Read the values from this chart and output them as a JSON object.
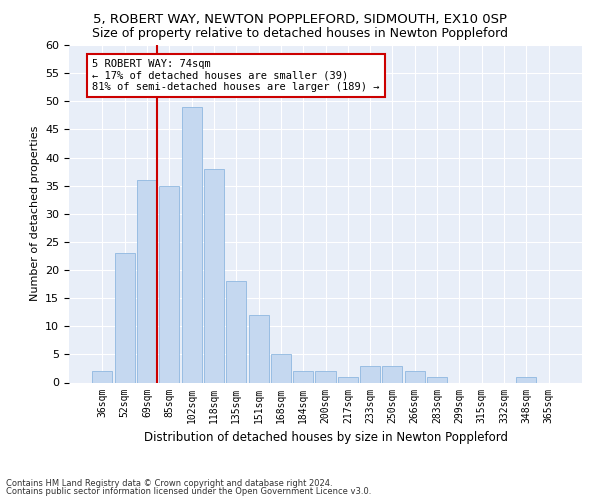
{
  "title1": "5, ROBERT WAY, NEWTON POPPLEFORD, SIDMOUTH, EX10 0SP",
  "title2": "Size of property relative to detached houses in Newton Poppleford",
  "xlabel": "Distribution of detached houses by size in Newton Poppleford",
  "ylabel": "Number of detached properties",
  "bin_labels": [
    "36sqm",
    "52sqm",
    "69sqm",
    "85sqm",
    "102sqm",
    "118sqm",
    "135sqm",
    "151sqm",
    "168sqm",
    "184sqm",
    "200sqm",
    "217sqm",
    "233sqm",
    "250sqm",
    "266sqm",
    "283sqm",
    "299sqm",
    "315sqm",
    "332sqm",
    "348sqm",
    "365sqm"
  ],
  "bar_heights": [
    2,
    23,
    36,
    35,
    49,
    38,
    18,
    12,
    5,
    2,
    2,
    1,
    3,
    3,
    2,
    1,
    0,
    0,
    0,
    1,
    0
  ],
  "bar_color": "#c5d8f0",
  "bar_edge_color": "#8fb8e0",
  "red_line_color": "#cc0000",
  "annotation_box_color": "#ffffff",
  "annotation_box_edge": "#cc0000",
  "property_line_label": "5 ROBERT WAY: 74sqm",
  "annotation_line1": "← 17% of detached houses are smaller (39)",
  "annotation_line2": "81% of semi-detached houses are larger (189) →",
  "ylim": [
    0,
    60
  ],
  "yticks": [
    0,
    5,
    10,
    15,
    20,
    25,
    30,
    35,
    40,
    45,
    50,
    55,
    60
  ],
  "footer1": "Contains HM Land Registry data © Crown copyright and database right 2024.",
  "footer2": "Contains public sector information licensed under the Open Government Licence v3.0.",
  "bg_color": "#e8eef8",
  "title1_fontsize": 9.5,
  "title2_fontsize": 9,
  "ylabel_fontsize": 8,
  "xlabel_fontsize": 8.5
}
